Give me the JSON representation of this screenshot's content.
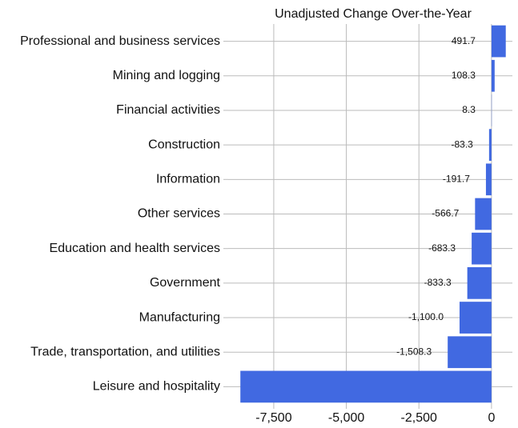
{
  "chart_data": {
    "type": "barh",
    "title": "Unadjusted Change Over-the-Year",
    "categories": [
      "Professional and business services",
      "Mining and logging",
      "Financial activities",
      "Construction",
      "Information",
      "Other services",
      "Education and health services",
      "Government",
      "Manufacturing",
      "Trade, transportation, and utilities",
      "Leisure and hospitality"
    ],
    "values": [
      491.7,
      108.3,
      8.3,
      -83.3,
      -191.7,
      -566.7,
      -683.3,
      -833.3,
      -1100.0,
      -1508.3,
      -8650
    ],
    "value_labels": [
      "491.7",
      "108.3",
      "8.3",
      "-83.3",
      "-191.7",
      "-566.7",
      "-683.3",
      "-833.3",
      "-1,100.0",
      "-1,508.3",
      null
    ],
    "color": "#4169e1",
    "xlim": [
      -9070,
      720
    ],
    "xticks": [
      {
        "value": -7500,
        "label": "-7,500"
      },
      {
        "value": -5000,
        "label": "-5,000"
      },
      {
        "value": -2500,
        "label": "-2,500"
      },
      0
    ],
    "grid": true
  }
}
